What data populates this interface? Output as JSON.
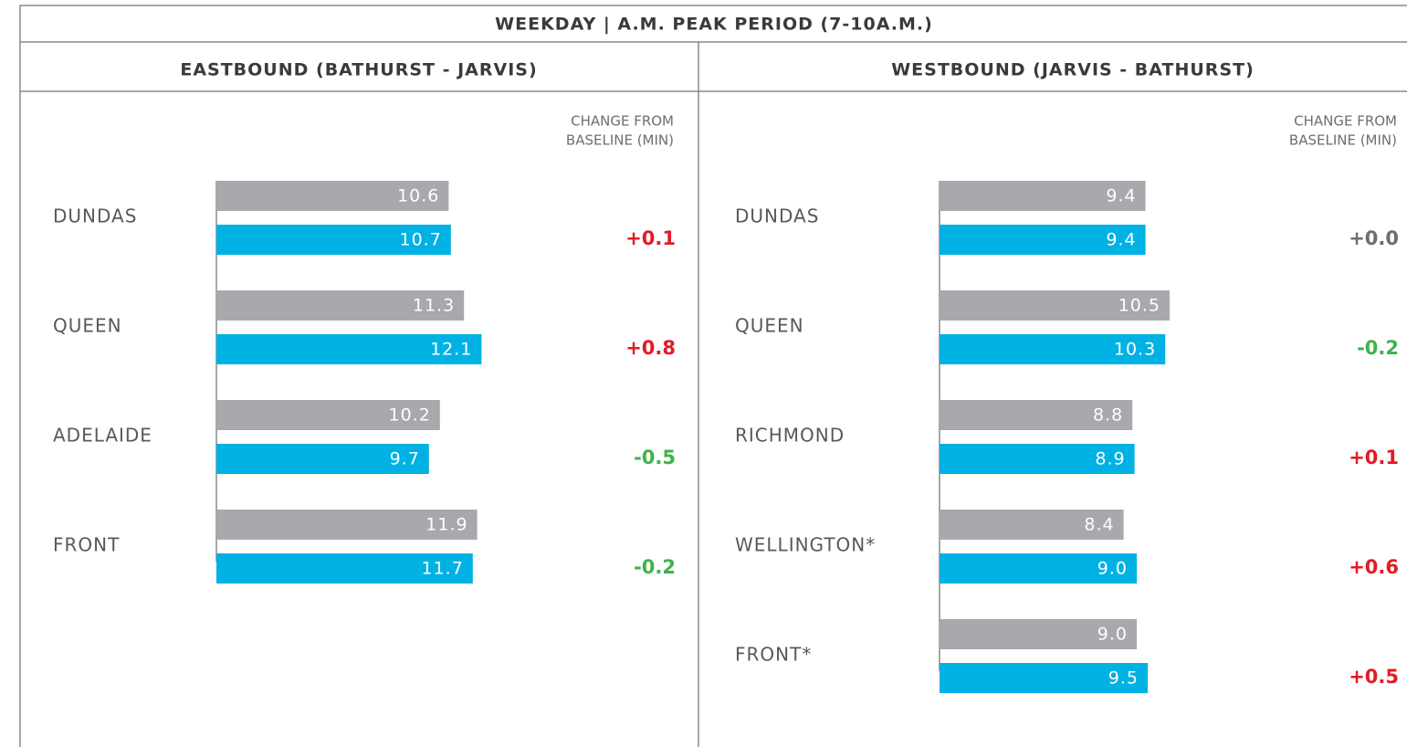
{
  "title": "WEEKDAY | A.M. PEAK PERIOD (7-10A.M.)",
  "chart_data": [
    {
      "type": "bar",
      "orientation": "horizontal",
      "title": "EASTBOUND (BATHURST - JARVIS)",
      "annotation": [
        "CHANGE FROM",
        "BASELINE (MIN)"
      ],
      "categories": [
        "DUNDAS",
        "QUEEN",
        "ADELAIDE",
        "FRONT"
      ],
      "xlim": [
        0,
        20
      ],
      "series": [
        {
          "color": "#a7a9ac",
          "values": [
            10.6,
            11.3,
            10.2,
            11.9
          ],
          "value_labels": [
            "10.6",
            "11.3",
            "10.2",
            "11.9"
          ]
        },
        {
          "color": "#00b2e3",
          "values": [
            10.7,
            12.1,
            9.7,
            11.7
          ],
          "value_labels": [
            "10.7",
            "12.1",
            "9.7",
            "11.7"
          ]
        }
      ],
      "changes": [
        0.1,
        0.8,
        -0.5,
        -0.2
      ],
      "change_labels": [
        "+0.1",
        "+0.8",
        "-0.5",
        "-0.2"
      ],
      "change_colors": {
        "positive": "#e31b23",
        "negative": "#3cb44b",
        "zero": "#6d6e71"
      }
    },
    {
      "type": "bar",
      "orientation": "horizontal",
      "title": "WESTBOUND (JARVIS - BATHURST)",
      "annotation": [
        "CHANGE FROM",
        "BASELINE (MIN)"
      ],
      "categories": [
        "DUNDAS",
        "QUEEN",
        "RICHMOND",
        "WELLINGTON*",
        "FRONT*"
      ],
      "xlim": [
        0,
        20
      ],
      "series": [
        {
          "color": "#a7a9ac",
          "values": [
            9.4,
            10.5,
            8.8,
            8.4,
            9.0
          ],
          "value_labels": [
            "9.4",
            "10.5",
            "8.8",
            "8.4",
            "9.0"
          ]
        },
        {
          "color": "#00b2e3",
          "values": [
            9.4,
            10.3,
            8.9,
            9.0,
            9.5
          ],
          "value_labels": [
            "9.4",
            "10.3",
            "8.9",
            "9.0",
            "9.5"
          ]
        }
      ],
      "changes": [
        0.0,
        -0.2,
        0.1,
        0.6,
        0.5
      ],
      "change_labels": [
        "+0.0",
        "-0.2",
        "+0.1",
        "+0.6",
        "+0.5"
      ],
      "change_colors": {
        "positive": "#e31b23",
        "negative": "#3cb44b",
        "zero": "#6d6e71"
      }
    }
  ]
}
